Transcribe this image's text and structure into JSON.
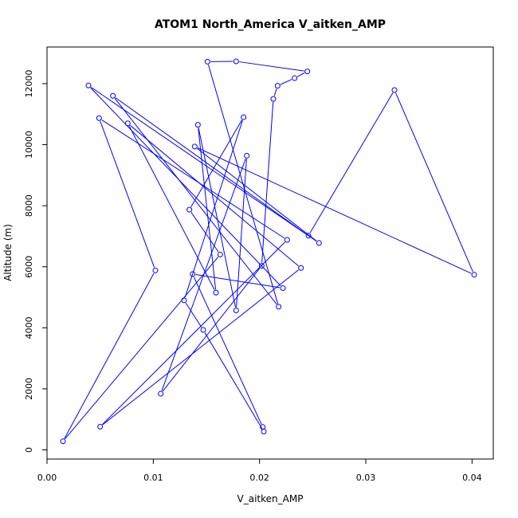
{
  "chart_data": {
    "type": "line",
    "title": "ATOM1 North_America V_aitken_AMP",
    "xlabel": "V_aitken_AMP",
    "ylabel": "Altitude (m)",
    "xlim": [
      0,
      0.042
    ],
    "ylim": [
      -300,
      13200
    ],
    "xticks": [
      0,
      0.01,
      0.02,
      0.03,
      0.04
    ],
    "xtick_labels": [
      "0.00",
      "0.01",
      "0.02",
      "0.03",
      "0.04"
    ],
    "yticks": [
      0,
      2000,
      4000,
      6000,
      8000,
      10000,
      12000
    ],
    "yticks_labels": [
      "0",
      "2000",
      "4000",
      "6000",
      "8000",
      "10000",
      "12000"
    ],
    "grid": false,
    "legend": "none",
    "color": "#0000ff",
    "series": [
      {
        "x": [
          0.0204,
          0.0147,
          0.0129,
          0.0185,
          0.0134,
          0.0163,
          0.0015,
          0.0102,
          0.0049,
          0.0226,
          0.005,
          0.0239,
          0.0076,
          0.0159,
          0.0142,
          0.0178,
          0.0188,
          0.0107,
          0.0202,
          0.0213,
          0.0217,
          0.0233,
          0.0245,
          0.0178,
          0.0151,
          0.0218,
          0.0062,
          0.0246,
          0.0327,
          0.0402,
          0.0139,
          0.0256,
          0.0039,
          0.0222,
          0.0137,
          0.0203
        ],
        "y": [
          600,
          3930,
          4900,
          10900,
          7870,
          6400,
          280,
          5880,
          10870,
          6880,
          760,
          5960,
          10700,
          5150,
          10650,
          4570,
          9640,
          1840,
          6030,
          11500,
          11930,
          12180,
          12400,
          12730,
          12720,
          4690,
          11600,
          7020,
          11790,
          5740,
          9940,
          6780,
          11940,
          5300,
          5760,
          750
        ]
      }
    ]
  }
}
